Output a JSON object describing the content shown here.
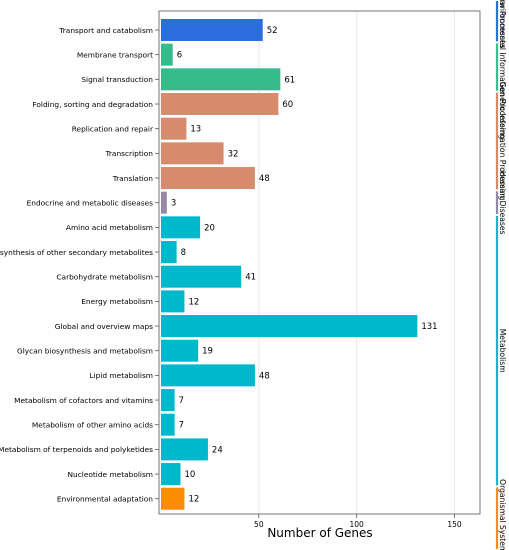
{
  "chart_data": {
    "type": "bar",
    "orientation": "horizontal",
    "categories": [
      "Transport and catabolism",
      "Membrane transport",
      "Signal transduction",
      "Folding, sorting and degradation",
      "Replication and repair",
      "Transcription",
      "Translation",
      "Endocrine and metabolic diseases",
      "Amino acid metabolism",
      "Biosynthesis of other secondary metabolites",
      "Carbohydrate metabolism",
      "Energy metabolism",
      "Global and overview maps",
      "Glycan biosynthesis and metabolism",
      "Lipid metabolism",
      "Metabolism of cofactors and vitamins",
      "Metabolism of other amino acids",
      "Metabolism of terpenoids and polyketides",
      "Nucleotide metabolism",
      "Environmental adaptation"
    ],
    "values": [
      52,
      6,
      61,
      60,
      13,
      32,
      48,
      3,
      20,
      8,
      41,
      12,
      131,
      19,
      48,
      7,
      7,
      24,
      10,
      12
    ],
    "groups": [
      "Cellular Processes",
      "Environmental Information Processing",
      "Environmental Information Processing",
      "Genetic Information Processing",
      "Genetic Information Processing",
      "Genetic Information Processing",
      "Genetic Information Processing",
      "Human Diseases",
      "Metabolism",
      "Metabolism",
      "Metabolism",
      "Metabolism",
      "Metabolism",
      "Metabolism",
      "Metabolism",
      "Metabolism",
      "Metabolism",
      "Metabolism",
      "Metabolism",
      "Organismal Systems"
    ],
    "group_labels": [
      {
        "name": "Cellular Processes",
        "text": "ular Processes",
        "color": "#2f6fd8",
        "from": 0,
        "to": 0
      },
      {
        "name": "Environmental Information Processing",
        "text": "Environmental Information Processing",
        "color": "#3dbd8c",
        "from": 1,
        "to": 2
      },
      {
        "name": "Genetic Information Processing",
        "text": "Genetic Information Processing",
        "color": "#d38c6b",
        "from": 3,
        "to": 6
      },
      {
        "name": "Human Diseases",
        "text": "Human Diseases",
        "color": "#9488a8",
        "from": 7,
        "to": 7
      },
      {
        "name": "Metabolism",
        "text": "Metabolism",
        "color": "#17b5c8",
        "from": 8,
        "to": 18
      },
      {
        "name": "Organismal Systems",
        "text": "Organismal Systems",
        "color": "#f58c1c",
        "from": 19,
        "to": 19
      }
    ],
    "group_colors": {
      "Cellular Processes": "#2a6ee0",
      "Environmental Information Processing": "#34bc8c",
      "Genetic Information Processing": "#d68c6c",
      "Human Diseases": "#9488a6",
      "Metabolism": "#00b8cc",
      "Organismal Systems": "#fc8c04"
    },
    "xlabel": "Number of Genes",
    "ylabel": "",
    "xticks": [
      50,
      100,
      150
    ],
    "xlim": [
      -1,
      163
    ],
    "grid": true,
    "legend": "group labels on right side, vertical"
  }
}
